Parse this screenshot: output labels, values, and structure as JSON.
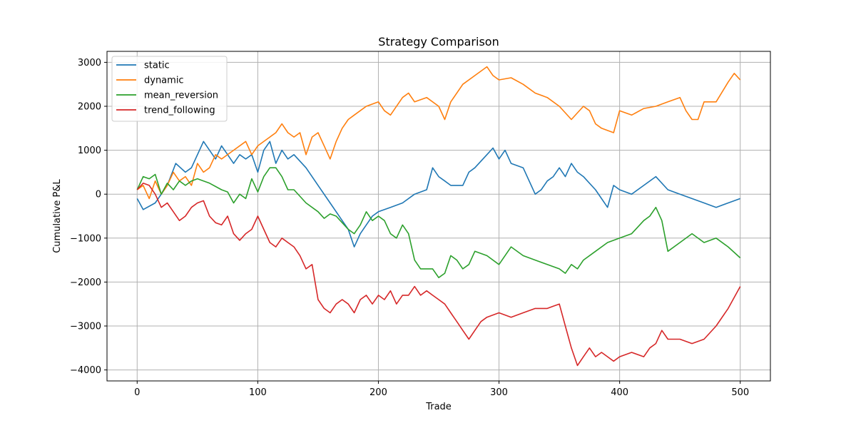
{
  "colors": {
    "static": "#1f77b4",
    "dynamic": "#ff7f0e",
    "mean_reversion": "#2ca02c",
    "trend_following": "#d62728",
    "grid": "#b0b0b0",
    "axes": "#000000"
  },
  "chart_data": {
    "type": "line",
    "title": "Strategy Comparison",
    "xlabel": "Trade",
    "ylabel": "Cumulative P&L",
    "xlim": [
      -25,
      525
    ],
    "ylim": [
      -4250,
      3250
    ],
    "xticks": [
      0,
      100,
      200,
      300,
      400,
      500
    ],
    "yticks": [
      -4000,
      -3000,
      -2000,
      -1000,
      0,
      1000,
      2000,
      3000
    ],
    "xtick_labels": [
      "0",
      "100",
      "200",
      "300",
      "400",
      "500"
    ],
    "ytick_labels": [
      "−4000",
      "−3000",
      "−2000",
      "−1000",
      "0",
      "1000",
      "2000",
      "3000"
    ],
    "grid": true,
    "legend_position": "top-left",
    "series": [
      {
        "name": "static",
        "x": [
          0,
          5,
          15,
          25,
          32,
          40,
          45,
          55,
          60,
          65,
          70,
          75,
          80,
          85,
          90,
          95,
          100,
          105,
          110,
          115,
          120,
          125,
          130,
          140,
          150,
          160,
          170,
          175,
          180,
          185,
          190,
          195,
          200,
          210,
          220,
          230,
          240,
          245,
          250,
          255,
          260,
          270,
          275,
          280,
          290,
          295,
          300,
          305,
          310,
          320,
          330,
          335,
          340,
          345,
          350,
          355,
          360,
          365,
          370,
          380,
          390,
          395,
          400,
          410,
          420,
          430,
          440,
          450,
          460,
          470,
          480,
          490,
          500
        ],
        "y": [
          -100,
          -350,
          -200,
          200,
          700,
          500,
          600,
          1200,
          1000,
          800,
          1100,
          900,
          700,
          900,
          800,
          900,
          500,
          1000,
          1200,
          700,
          1000,
          800,
          900,
          600,
          200,
          -200,
          -600,
          -800,
          -1200,
          -900,
          -700,
          -500,
          -400,
          -300,
          -200,
          0,
          100,
          600,
          400,
          300,
          200,
          200,
          500,
          600,
          900,
          1050,
          800,
          1000,
          700,
          600,
          0,
          100,
          300,
          400,
          600,
          400,
          700,
          500,
          400,
          100,
          -300,
          200,
          100,
          0,
          200,
          400,
          100,
          0,
          -100,
          -200,
          -300,
          -200,
          -100
        ]
      },
      {
        "name": "dynamic",
        "x": [
          0,
          5,
          10,
          15,
          20,
          25,
          30,
          35,
          40,
          45,
          50,
          55,
          60,
          65,
          70,
          80,
          90,
          95,
          100,
          110,
          115,
          120,
          125,
          130,
          135,
          140,
          145,
          150,
          155,
          160,
          165,
          170,
          175,
          180,
          190,
          200,
          205,
          210,
          220,
          225,
          230,
          240,
          250,
          255,
          260,
          270,
          280,
          290,
          295,
          300,
          310,
          320,
          330,
          340,
          350,
          360,
          370,
          375,
          380,
          385,
          390,
          395,
          400,
          410,
          420,
          430,
          440,
          450,
          455,
          460,
          465,
          470,
          480,
          490,
          495,
          500
        ],
        "y": [
          100,
          200,
          -100,
          300,
          0,
          200,
          500,
          300,
          400,
          200,
          700,
          500,
          600,
          900,
          800,
          1000,
          1200,
          900,
          1100,
          1300,
          1400,
          1600,
          1400,
          1300,
          1400,
          900,
          1300,
          1400,
          1100,
          800,
          1200,
          1500,
          1700,
          1800,
          2000,
          2100,
          1900,
          1800,
          2200,
          2300,
          2100,
          2200,
          2000,
          1700,
          2100,
          2500,
          2700,
          2900,
          2700,
          2600,
          2650,
          2500,
          2300,
          2200,
          2000,
          1700,
          2000,
          1900,
          1600,
          1500,
          1450,
          1400,
          1900,
          1800,
          1950,
          2000,
          2100,
          2200,
          1900,
          1700,
          1700,
          2100,
          2100,
          2550,
          2750,
          2600
        ]
      },
      {
        "name": "mean_reversion",
        "x": [
          0,
          5,
          10,
          15,
          20,
          25,
          30,
          35,
          40,
          45,
          50,
          60,
          70,
          75,
          80,
          85,
          90,
          95,
          100,
          105,
          110,
          115,
          120,
          125,
          130,
          140,
          150,
          155,
          160,
          165,
          170,
          175,
          180,
          185,
          190,
          195,
          200,
          205,
          210,
          215,
          220,
          225,
          230,
          235,
          240,
          245,
          250,
          255,
          260,
          265,
          270,
          275,
          280,
          290,
          300,
          310,
          320,
          330,
          340,
          350,
          355,
          360,
          365,
          370,
          380,
          390,
          400,
          410,
          420,
          425,
          430,
          435,
          440,
          450,
          460,
          470,
          480,
          490,
          500
        ],
        "y": [
          100,
          400,
          350,
          450,
          0,
          250,
          100,
          300,
          200,
          300,
          350,
          250,
          100,
          50,
          -200,
          0,
          -100,
          350,
          50,
          400,
          600,
          600,
          400,
          100,
          100,
          -200,
          -400,
          -550,
          -450,
          -500,
          -650,
          -800,
          -900,
          -700,
          -400,
          -600,
          -500,
          -600,
          -900,
          -1000,
          -700,
          -900,
          -1500,
          -1700,
          -1700,
          -1700,
          -1900,
          -1800,
          -1400,
          -1500,
          -1700,
          -1600,
          -1300,
          -1400,
          -1600,
          -1200,
          -1400,
          -1500,
          -1600,
          -1700,
          -1800,
          -1600,
          -1700,
          -1500,
          -1300,
          -1100,
          -1000,
          -900,
          -600,
          -500,
          -300,
          -600,
          -1300,
          -1100,
          -900,
          -1100,
          -1000,
          -1200,
          -1450
        ]
      },
      {
        "name": "trend_following",
        "x": [
          0,
          5,
          10,
          15,
          20,
          25,
          30,
          35,
          40,
          45,
          50,
          55,
          60,
          65,
          70,
          75,
          80,
          85,
          90,
          95,
          100,
          105,
          110,
          115,
          120,
          125,
          130,
          135,
          140,
          145,
          150,
          155,
          160,
          165,
          170,
          175,
          180,
          185,
          190,
          195,
          200,
          205,
          210,
          215,
          220,
          225,
          230,
          235,
          240,
          245,
          250,
          255,
          260,
          265,
          270,
          275,
          280,
          285,
          290,
          300,
          310,
          320,
          330,
          340,
          345,
          350,
          355,
          360,
          365,
          370,
          375,
          380,
          385,
          390,
          395,
          400,
          410,
          420,
          425,
          430,
          435,
          440,
          450,
          460,
          470,
          480,
          490,
          500
        ],
        "y": [
          100,
          250,
          200,
          0,
          -300,
          -200,
          -400,
          -600,
          -500,
          -300,
          -200,
          -150,
          -500,
          -650,
          -700,
          -500,
          -900,
          -1050,
          -900,
          -800,
          -500,
          -800,
          -1100,
          -1200,
          -1000,
          -1100,
          -1200,
          -1400,
          -1700,
          -1600,
          -2400,
          -2600,
          -2700,
          -2500,
          -2400,
          -2500,
          -2700,
          -2400,
          -2300,
          -2500,
          -2300,
          -2400,
          -2200,
          -2500,
          -2300,
          -2300,
          -2100,
          -2300,
          -2200,
          -2300,
          -2400,
          -2500,
          -2700,
          -2900,
          -3100,
          -3300,
          -3100,
          -2900,
          -2800,
          -2700,
          -2800,
          -2700,
          -2600,
          -2600,
          -2550,
          -2500,
          -3000,
          -3500,
          -3900,
          -3700,
          -3500,
          -3700,
          -3600,
          -3700,
          -3800,
          -3700,
          -3600,
          -3700,
          -3500,
          -3400,
          -3100,
          -3300,
          -3300,
          -3400,
          -3300,
          -3000,
          -2600,
          -2100
        ]
      }
    ]
  }
}
